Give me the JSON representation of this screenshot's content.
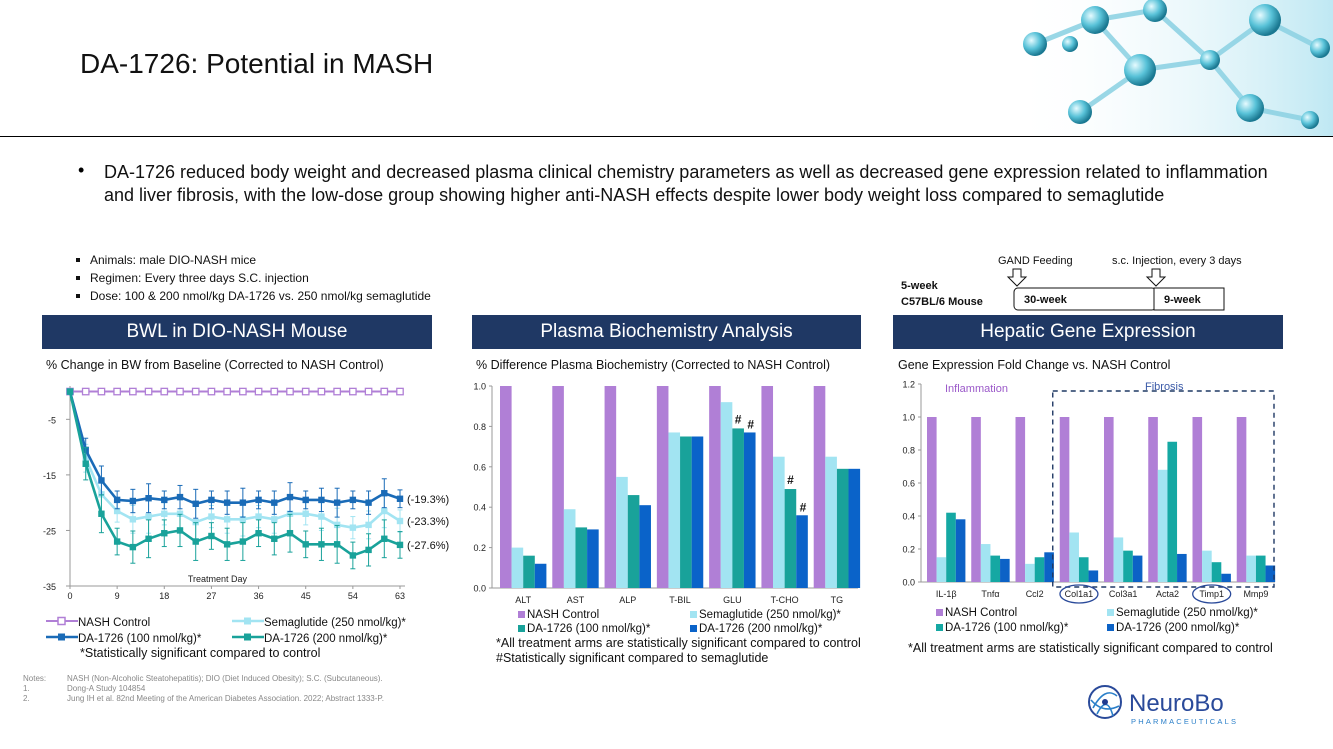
{
  "title": "DA-1726: Potential in MASH",
  "bullet": "DA-1726 reduced body weight and decreased plasma clinical chemistry parameters as well as decreased gene expression related to inflammation and liver fibrosis, with the low-dose group showing higher anti-NASH effects despite lower body weight loss compared to semaglutide",
  "study_bullets": [
    "Animals: male DIO-NASH mice",
    "Regimen: Every three days S.C. injection",
    "Dose: 100 & 200 nmol/kg DA-1726 vs. 250 nmol/kg semaglutide"
  ],
  "colors": {
    "nash": "#b07fd6",
    "sema": "#a2e4f2",
    "da100": "#1a6bb7",
    "da200": "#19a29a",
    "gene100": "#15a8a3",
    "gene200": "#0c62c6",
    "bar200": "#0a63c9",
    "header": "#1f3864"
  },
  "timeline": {
    "feeding_label": "GAND Feeding",
    "injection_label": "s.c. Injection, every 3 days",
    "mouse_line1": "5-week",
    "mouse_line2": "C57BL/6 Mouse",
    "phase1": "30-week",
    "phase2": "9-week"
  },
  "panel1": {
    "header": "BWL in DIO-NASH Mouse",
    "subtitle": "% Change in BW from Baseline (Corrected to NASH Control)",
    "legend": [
      "NASH Control",
      "Semaglutide (250 nmol/kg)*",
      "DA-1726 (100 nmol/kg)*",
      "DA-1726 (200 nmol/kg)*"
    ],
    "footnote": "*Statistically significant compared to control",
    "end_labels": [
      "(-19.3%)",
      "(-23.3%)",
      "(-27.6%)"
    ]
  },
  "panel2": {
    "header": "Plasma Biochemistry Analysis",
    "subtitle": "% Difference Plasma Biochemistry (Corrected to NASH Control)",
    "legend": [
      "NASH Control",
      "Semaglutide (250 nmol/kg)*",
      "DA-1726 (100 nmol/kg)*",
      "DA-1726 (200 nmol/kg)*"
    ],
    "footnote1": "*All treatment arms are statistically significant compared to control",
    "footnote2": "#Statistically significant compared to semaglutide"
  },
  "panel3": {
    "header": "Hepatic Gene Expression",
    "subtitle": "Gene Expression Fold Change vs. NASH Control",
    "group1": "Inflammation",
    "group2": "Fibrosis",
    "legend": [
      "NASH Control",
      "Semaglutide (250 nmol/kg)*",
      "DA-1726 (100 nmol/kg)*",
      "DA-1726 (200 nmol/kg)*"
    ],
    "footnote": "*All treatment arms are statistically significant compared to control"
  },
  "notes": {
    "label": "Notes:",
    "line1": "NASH (Non-Alcoholic Steatohepatitis); DIO (Diet Induced Obesity); S.C. (Subcutaneous).",
    "n1": "1.",
    "line2": "Dong-A Study 104854",
    "n2": "2.",
    "line3": "Jung IH et al. 82nd Meeting of the American Diabetes Association. 2022; Abstract 1333-P."
  },
  "logo": {
    "name": "NeuroBo",
    "sub": "PHARMACEUTICALS"
  },
  "chart_data": [
    {
      "type": "line",
      "title": "BWL in DIO-NASH Mouse",
      "ylabel": "% Change in BW from Baseline (Corrected to NASH Control)",
      "xlabel": "Treatment Day",
      "x": [
        0,
        3,
        6,
        9,
        12,
        15,
        18,
        21,
        24,
        27,
        30,
        33,
        36,
        39,
        42,
        45,
        48,
        51,
        54,
        57,
        60,
        63
      ],
      "xticks": [
        0,
        9,
        18,
        27,
        36,
        45,
        54,
        63
      ],
      "yticks": [
        -5,
        -15,
        -25,
        -35
      ],
      "ylim": [
        -35,
        1
      ],
      "series": [
        {
          "name": "NASH Control",
          "values": [
            0,
            0,
            0,
            0,
            0,
            0,
            0,
            0,
            0,
            0,
            0,
            0,
            0,
            0,
            0,
            0,
            0,
            0,
            0,
            0,
            0,
            0
          ]
        },
        {
          "name": "Semaglutide (250 nmol/kg)*",
          "values": [
            0,
            -12,
            -18.5,
            -21.5,
            -23,
            -22.5,
            -22,
            -22,
            -23.5,
            -22.5,
            -23,
            -23,
            -22.5,
            -23,
            -22,
            -22,
            -22.5,
            -24,
            -24.5,
            -24,
            -21.5,
            -23.3
          ]
        },
        {
          "name": "DA-1726 (100 nmol/kg)*",
          "values": [
            0,
            -10.5,
            -16,
            -19.5,
            -19.7,
            -19.2,
            -19.5,
            -19,
            -20.2,
            -19.5,
            -20,
            -20,
            -19.5,
            -20,
            -19,
            -19.5,
            -19.5,
            -20,
            -19.5,
            -20,
            -18.3,
            -19.3
          ]
        },
        {
          "name": "DA-1726 (200 nmol/kg)*",
          "values": [
            0,
            -13,
            -22,
            -27,
            -28,
            -26.5,
            -25.5,
            -25,
            -27,
            -26,
            -27.5,
            -27,
            -25.5,
            -26.5,
            -25.5,
            -27.5,
            -27.5,
            -27.5,
            -29.5,
            -28.5,
            -26.5,
            -27.6
          ]
        }
      ],
      "annotations": [
        "(-19.3%)",
        "(-23.3%)",
        "(-27.6%)"
      ]
    },
    {
      "type": "bar",
      "title": "Plasma Biochemistry Analysis",
      "ylabel": "% Difference Plasma Biochemistry (Corrected to NASH Control)",
      "categories": [
        "ALT",
        "AST",
        "ALP",
        "T-BIL",
        "GLU",
        "T-CHO",
        "TG"
      ],
      "yticks": [
        "0.0",
        "0.2",
        "0.4",
        "0.6",
        "0.8",
        "1.0"
      ],
      "ylim": [
        0,
        1.0
      ],
      "series": [
        {
          "name": "NASH Control",
          "values": [
            1,
            1,
            1,
            1,
            1,
            1,
            1
          ]
        },
        {
          "name": "Semaglutide (250 nmol/kg)*",
          "values": [
            0.2,
            0.39,
            0.55,
            0.77,
            0.92,
            0.65,
            0.65
          ]
        },
        {
          "name": "DA-1726 (100 nmol/kg)*",
          "values": [
            0.16,
            0.3,
            0.46,
            0.75,
            0.79,
            0.49,
            0.59
          ]
        },
        {
          "name": "DA-1726 (200 nmol/kg)*",
          "values": [
            0.12,
            0.29,
            0.41,
            0.75,
            0.77,
            0.36,
            0.59
          ]
        }
      ],
      "annotations": [
        "#",
        "#",
        "#",
        "#"
      ]
    },
    {
      "type": "bar",
      "title": "Hepatic Gene Expression",
      "ylabel": "Gene Expression Fold Change vs. NASH Control",
      "categories": [
        "IL-1β",
        "Tnfα",
        "Ccl2",
        "Col1a1",
        "Col3a1",
        "Acta2",
        "Timp1",
        "Mmp9"
      ],
      "yticks": [
        "0.0",
        "0.2",
        "0.4",
        "0.6",
        "0.8",
        "1.0",
        "1.2"
      ],
      "ylim": [
        0,
        1.2
      ],
      "series": [
        {
          "name": "NASH Control",
          "values": [
            1,
            1,
            1,
            1,
            1,
            1,
            1,
            1
          ]
        },
        {
          "name": "Semaglutide (250 nmol/kg)*",
          "values": [
            0.15,
            0.23,
            0.11,
            0.3,
            0.27,
            0.68,
            0.19,
            0.16
          ]
        },
        {
          "name": "DA-1726 (100 nmol/kg)*",
          "values": [
            0.42,
            0.16,
            0.15,
            0.15,
            0.19,
            0.85,
            0.12,
            0.16
          ]
        },
        {
          "name": "DA-1726 (200 nmol/kg)*",
          "values": [
            0.38,
            0.14,
            0.18,
            0.07,
            0.16,
            0.17,
            0.05,
            0.1
          ]
        }
      ]
    }
  ]
}
